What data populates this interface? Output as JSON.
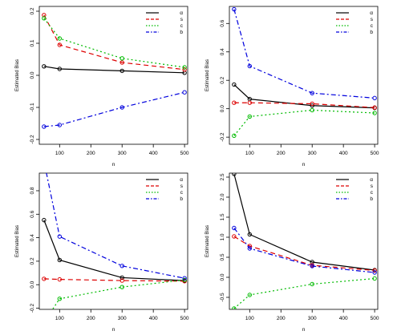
{
  "colors": {
    "alpha": "#000000",
    "s": "#dd0000",
    "c": "#00bb00",
    "b": "#0000dd"
  },
  "chart_data": [
    {
      "type": "line",
      "xlabel": "n",
      "ylabel": "Estimated Bias",
      "x": [
        50,
        100,
        300,
        500
      ],
      "xlim": [
        35,
        510
      ],
      "ylim": [
        -0.215,
        0.215
      ],
      "xticks": [
        "100",
        "200",
        "300",
        "400",
        "500"
      ],
      "yticks": [
        "-0.2",
        "-0.1",
        "0.0",
        "0.1",
        "0.2"
      ],
      "ytick_values": [
        -0.2,
        -0.1,
        0.0,
        0.1,
        0.2
      ],
      "legend_position": "top-right",
      "series": [
        {
          "name": "α",
          "key": "alpha",
          "dash": "solid",
          "values": [
            0.028,
            0.02,
            0.014,
            0.008
          ]
        },
        {
          "name": "s",
          "key": "s",
          "dash": "dashed",
          "values": [
            0.188,
            0.095,
            0.04,
            0.018
          ]
        },
        {
          "name": "c",
          "key": "c",
          "dash": "dotted",
          "values": [
            0.178,
            0.115,
            0.053,
            0.025
          ]
        },
        {
          "name": "b",
          "key": "b",
          "dash": "dashdot",
          "values": [
            -0.16,
            -0.155,
            -0.1,
            -0.053
          ]
        }
      ]
    },
    {
      "type": "line",
      "xlabel": "n",
      "ylabel": "Estimated Bias",
      "x": [
        50,
        100,
        300,
        500
      ],
      "xlim": [
        35,
        510
      ],
      "ylim": [
        -0.25,
        0.72
      ],
      "xticks": [
        "100",
        "200",
        "300",
        "400",
        "500"
      ],
      "yticks": [
        "-0.2",
        "0.0",
        "0.2",
        "0.4",
        "0.6"
      ],
      "ytick_values": [
        -0.2,
        0.0,
        0.2,
        0.4,
        0.6
      ],
      "legend_position": "top-right",
      "series": [
        {
          "name": "α",
          "key": "alpha",
          "dash": "solid",
          "values": [
            0.17,
            0.068,
            0.022,
            0.006
          ]
        },
        {
          "name": "s",
          "key": "s",
          "dash": "dashed",
          "values": [
            0.042,
            0.042,
            0.035,
            0.008
          ]
        },
        {
          "name": "c",
          "key": "c",
          "dash": "dotted",
          "values": [
            -0.19,
            -0.055,
            -0.01,
            -0.03
          ]
        },
        {
          "name": "b",
          "key": "b",
          "dash": "dashdot",
          "values": [
            0.7,
            0.3,
            0.11,
            0.075
          ]
        }
      ]
    },
    {
      "type": "line",
      "xlabel": "n",
      "ylabel": "Estimated Bias",
      "x": [
        50,
        100,
        300,
        500
      ],
      "xlim": [
        35,
        510
      ],
      "ylim": [
        -0.21,
        0.95
      ],
      "xticks": [
        "100",
        "200",
        "300",
        "400",
        "500"
      ],
      "yticks": [
        "-0.2",
        "0.0",
        "0.2",
        "0.4",
        "0.6",
        "0.8"
      ],
      "ytick_values": [
        -0.2,
        0.0,
        0.2,
        0.4,
        0.6,
        0.8
      ],
      "legend_position": "top-right",
      "series": [
        {
          "name": "α",
          "key": "alpha",
          "dash": "solid",
          "values": [
            0.55,
            0.21,
            0.06,
            0.035
          ]
        },
        {
          "name": "s",
          "key": "s",
          "dash": "dashed",
          "values": [
            0.05,
            0.045,
            0.035,
            0.03
          ]
        },
        {
          "name": "c",
          "key": "c",
          "dash": "dotted",
          "values": [
            -0.32,
            -0.12,
            -0.02,
            0.04
          ]
        },
        {
          "name": "b",
          "key": "b",
          "dash": "dashdot",
          "values": [
            1.05,
            0.41,
            0.16,
            0.055
          ]
        }
      ]
    },
    {
      "type": "line",
      "xlabel": "n",
      "ylabel": "Estimated Bias",
      "x": [
        50,
        100,
        300,
        500
      ],
      "xlim": [
        35,
        510
      ],
      "ylim": [
        -0.8,
        2.6
      ],
      "xticks": [
        "100",
        "200",
        "300",
        "400",
        "500"
      ],
      "yticks": [
        "-0.5",
        "0.0",
        "0.5",
        "1.0",
        "1.5",
        "2.0",
        "2.5"
      ],
      "ytick_values": [
        -0.5,
        0.0,
        0.5,
        1.0,
        1.5,
        2.0,
        2.5
      ],
      "legend_position": "top-right",
      "series": [
        {
          "name": "α",
          "key": "alpha",
          "dash": "solid",
          "values": [
            2.58,
            1.07,
            0.38,
            0.18
          ]
        },
        {
          "name": "s",
          "key": "s",
          "dash": "dashed",
          "values": [
            1.02,
            0.78,
            0.3,
            0.17
          ]
        },
        {
          "name": "c",
          "key": "c",
          "dash": "dotted",
          "values": [
            -0.78,
            -0.44,
            -0.17,
            -0.03
          ]
        },
        {
          "name": "b",
          "key": "b",
          "dash": "dashdot",
          "values": [
            1.23,
            0.72,
            0.28,
            0.12
          ]
        }
      ]
    }
  ]
}
